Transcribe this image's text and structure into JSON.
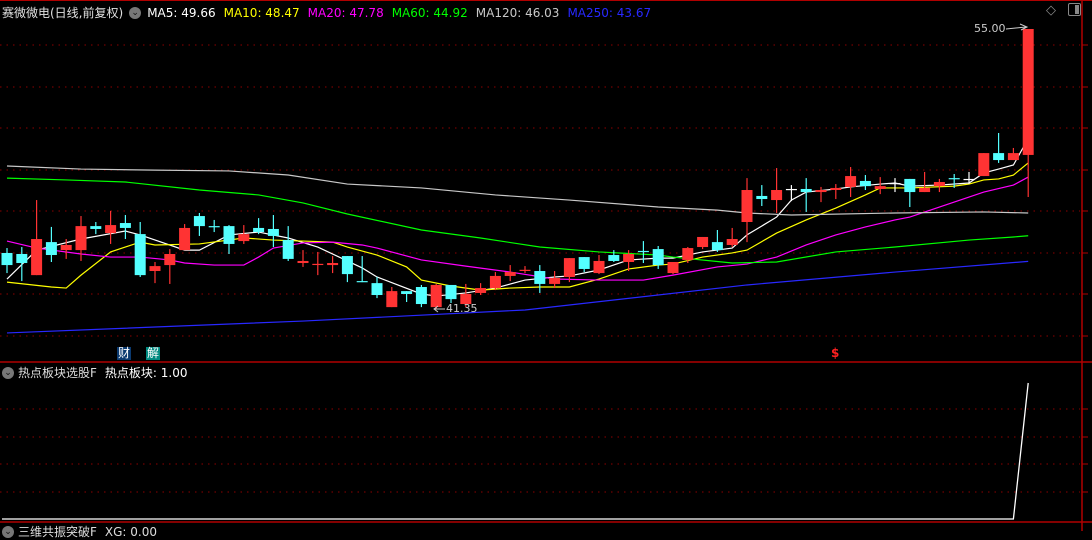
{
  "header": {
    "title": "赛微微电(日线,前复权)",
    "ma": [
      {
        "label": "MA5: 49.66",
        "color": "#ffffff"
      },
      {
        "label": "MA10: 48.47",
        "color": "#ffff00"
      },
      {
        "label": "MA20: 47.78",
        "color": "#ff00ff"
      },
      {
        "label": "MA60: 44.92",
        "color": "#00ff00"
      },
      {
        "label": "MA120: 46.03",
        "color": "#c8c8c8"
      },
      {
        "label": "MA250: 43.67",
        "color": "#2828ff"
      }
    ],
    "icons": [
      "chevron-down-icon",
      "diamond-icon",
      "panel-toggle-icon"
    ]
  },
  "annotations": {
    "high_label": "55.00",
    "low_label": "41.35",
    "finance_marker": "财",
    "unlock_marker": "解",
    "dividend_marker": "$"
  },
  "colors": {
    "up": "#ff3333",
    "down": "#54ffff",
    "doji": "#ffffff",
    "grid": "#8b0000",
    "axis": "#b00000"
  },
  "chart_data": [
    {
      "type": "candlestick",
      "ohlc": [
        [
          44.08,
          44.32,
          43.1,
          43.49
        ],
        [
          44.03,
          44.37,
          42.71,
          43.59
        ],
        [
          43.0,
          46.66,
          43.0,
          44.76
        ],
        [
          44.61,
          45.35,
          43.64,
          43.98
        ],
        [
          44.22,
          44.76,
          43.79,
          44.47
        ],
        [
          44.22,
          45.88,
          43.69,
          45.39
        ],
        [
          45.39,
          45.59,
          45.0,
          45.25
        ],
        [
          45.05,
          46.13,
          44.52,
          45.44
        ],
        [
          45.54,
          45.93,
          44.76,
          45.3
        ],
        [
          45.0,
          45.59,
          42.91,
          43.0
        ],
        [
          43.2,
          43.64,
          42.61,
          43.44
        ],
        [
          43.49,
          44.27,
          42.57,
          44.03
        ],
        [
          44.22,
          45.49,
          44.22,
          45.3
        ],
        [
          45.88,
          46.03,
          44.91,
          45.39
        ],
        [
          45.39,
          45.69,
          45.1,
          45.38
        ],
        [
          45.39,
          45.44,
          44.03,
          44.52
        ],
        [
          44.66,
          45.44,
          44.52,
          45.0
        ],
        [
          45.3,
          45.78,
          45.0,
          45.1
        ],
        [
          45.25,
          45.93,
          44.37,
          44.91
        ],
        [
          44.71,
          45.39,
          43.69,
          43.79
        ],
        [
          43.59,
          44.22,
          43.4,
          43.69
        ],
        [
          43.54,
          44.13,
          43.0,
          43.55
        ],
        [
          43.49,
          43.93,
          43.1,
          43.59
        ],
        [
          43.93,
          43.93,
          42.66,
          43.05
        ],
        [
          42.71,
          43.93,
          42.66,
          42.7
        ],
        [
          42.61,
          42.91,
          41.88,
          42.03
        ],
        [
          41.44,
          42.42,
          41.44,
          42.22
        ],
        [
          42.22,
          42.22,
          41.69,
          42.08
        ],
        [
          42.42,
          42.52,
          41.44,
          41.59
        ],
        [
          41.44,
          42.57,
          41.35,
          42.52
        ],
        [
          42.52,
          42.52,
          41.64,
          41.83
        ],
        [
          41.59,
          42.57,
          41.44,
          42.08
        ],
        [
          42.13,
          42.61,
          42.03,
          42.37
        ],
        [
          42.37,
          43.15,
          42.27,
          42.96
        ],
        [
          42.96,
          43.49,
          42.71,
          43.15
        ],
        [
          43.25,
          43.44,
          43.1,
          43.26
        ],
        [
          43.2,
          43.49,
          42.13,
          42.57
        ],
        [
          42.57,
          43.2,
          42.37,
          42.86
        ],
        [
          42.91,
          43.83,
          42.66,
          43.83
        ],
        [
          43.88,
          43.88,
          43.15,
          43.3
        ],
        [
          43.1,
          43.98,
          43.05,
          43.69
        ],
        [
          43.98,
          44.22,
          43.64,
          43.69
        ],
        [
          43.64,
          44.22,
          43.2,
          44.03
        ],
        [
          44.18,
          44.66,
          43.59,
          44.17
        ],
        [
          44.27,
          44.42,
          43.3,
          43.49
        ],
        [
          43.1,
          43.64,
          43.05,
          43.64
        ],
        [
          43.74,
          44.37,
          43.59,
          44.32
        ],
        [
          44.37,
          44.86,
          44.27,
          44.86
        ],
        [
          44.61,
          45.2,
          44.13,
          44.22
        ],
        [
          44.47,
          45.3,
          44.37,
          44.76
        ],
        [
          45.59,
          47.73,
          44.61,
          47.15
        ],
        [
          46.86,
          47.39,
          46.37,
          46.71
        ],
        [
          46.66,
          48.22,
          46.03,
          47.15
        ],
        [
          47.2,
          47.39,
          46.61,
          47.2
        ],
        [
          47.2,
          47.73,
          46.08,
          47.05
        ],
        [
          47.05,
          47.3,
          46.56,
          47.15
        ],
        [
          47.15,
          47.44,
          46.71,
          47.25
        ],
        [
          47.3,
          48.27,
          46.81,
          47.83
        ],
        [
          47.59,
          47.88,
          47.15,
          47.34
        ],
        [
          47.2,
          47.78,
          46.95,
          47.34
        ],
        [
          47.49,
          47.73,
          47.05,
          47.49
        ],
        [
          47.69,
          47.69,
          46.32,
          47.05
        ],
        [
          47.05,
          48.03,
          47.05,
          47.25
        ],
        [
          47.34,
          47.69,
          47.05,
          47.54
        ],
        [
          47.73,
          47.93,
          47.25,
          47.72
        ],
        [
          47.69,
          48.03,
          47.44,
          47.69
        ],
        [
          47.83,
          48.95,
          47.83,
          48.95
        ],
        [
          48.95,
          49.93,
          48.47,
          48.61
        ],
        [
          48.61,
          49.2,
          48.61,
          48.95
        ],
        [
          48.86,
          55.0,
          46.81,
          55.0
        ]
      ],
      "ma_series": [
        {
          "name": "MA5",
          "color": "#ffffff",
          "points": [
            [
              0,
              42.81
            ],
            [
              2,
              44.22
            ],
            [
              5,
              44.76
            ],
            [
              8,
              45.15
            ],
            [
              9,
              44.96
            ],
            [
              12,
              44.22
            ],
            [
              13,
              44.22
            ],
            [
              15,
              44.96
            ],
            [
              17,
              45.1
            ],
            [
              19,
              44.81
            ],
            [
              21,
              44.37
            ],
            [
              24,
              43.35
            ],
            [
              25,
              42.91
            ],
            [
              28,
              42.08
            ],
            [
              29,
              41.98
            ],
            [
              31,
              42.13
            ],
            [
              33,
              42.37
            ],
            [
              35,
              42.76
            ],
            [
              37,
              42.91
            ],
            [
              38,
              42.96
            ],
            [
              40,
              43.25
            ],
            [
              42,
              43.74
            ],
            [
              44,
              43.83
            ],
            [
              45,
              43.83
            ],
            [
              47,
              44.13
            ],
            [
              49,
              44.32
            ],
            [
              50,
              44.96
            ],
            [
              52,
              45.83
            ],
            [
              53,
              46.66
            ],
            [
              54,
              47.05
            ],
            [
              56,
              47.2
            ],
            [
              57,
              47.3
            ],
            [
              59,
              47.44
            ],
            [
              60,
              47.49
            ],
            [
              61,
              47.34
            ],
            [
              63,
              47.39
            ],
            [
              65,
              47.49
            ],
            [
              66,
              47.98
            ],
            [
              67,
              48.17
            ],
            [
              68,
              48.37
            ],
            [
              69,
              49.66
            ]
          ]
        },
        {
          "name": "MA10",
          "color": "#ffff00",
          "points": [
            [
              0,
              42.66
            ],
            [
              3,
              42.42
            ],
            [
              4,
              42.37
            ],
            [
              5,
              43.0
            ],
            [
              7,
              44.13
            ],
            [
              9,
              44.61
            ],
            [
              10,
              44.47
            ],
            [
              13,
              44.52
            ],
            [
              16,
              44.81
            ],
            [
              18,
              44.71
            ],
            [
              20,
              44.66
            ],
            [
              22,
              44.61
            ],
            [
              23,
              44.37
            ],
            [
              25,
              43.98
            ],
            [
              27,
              43.4
            ],
            [
              28,
              42.76
            ],
            [
              30,
              42.47
            ],
            [
              32,
              42.27
            ],
            [
              34,
              42.37
            ],
            [
              36,
              42.42
            ],
            [
              38,
              42.42
            ],
            [
              40,
              42.81
            ],
            [
              42,
              43.3
            ],
            [
              44,
              43.49
            ],
            [
              45,
              43.54
            ],
            [
              47,
              43.88
            ],
            [
              49,
              44.08
            ],
            [
              50,
              44.22
            ],
            [
              52,
              45.05
            ],
            [
              54,
              45.69
            ],
            [
              56,
              46.27
            ],
            [
              58,
              46.91
            ],
            [
              59,
              47.25
            ],
            [
              61,
              47.25
            ],
            [
              64,
              47.34
            ],
            [
              65,
              47.44
            ],
            [
              66,
              47.64
            ],
            [
              67,
              47.69
            ],
            [
              68,
              47.88
            ],
            [
              69,
              48.47
            ]
          ]
        },
        {
          "name": "MA20",
          "color": "#ff00ff",
          "points": [
            [
              0,
              44.66
            ],
            [
              2,
              44.32
            ],
            [
              5,
              44.03
            ],
            [
              7,
              43.88
            ],
            [
              9,
              43.88
            ],
            [
              11,
              43.74
            ],
            [
              12,
              43.59
            ],
            [
              14,
              43.49
            ],
            [
              16,
              43.49
            ],
            [
              17,
              43.88
            ],
            [
              18,
              44.32
            ],
            [
              20,
              44.57
            ],
            [
              22,
              44.61
            ],
            [
              24,
              44.47
            ],
            [
              25,
              44.32
            ],
            [
              28,
              43.74
            ],
            [
              31,
              43.44
            ],
            [
              34,
              43.15
            ],
            [
              37,
              42.81
            ],
            [
              40,
              42.76
            ],
            [
              43,
              42.76
            ],
            [
              45,
              43.0
            ],
            [
              48,
              43.4
            ],
            [
              50,
              43.54
            ],
            [
              52,
              43.88
            ],
            [
              54,
              44.47
            ],
            [
              56,
              44.96
            ],
            [
              58,
              45.35
            ],
            [
              60,
              45.69
            ],
            [
              61,
              45.83
            ],
            [
              64,
              46.56
            ],
            [
              66,
              47.05
            ],
            [
              68,
              47.39
            ],
            [
              69,
              47.78
            ]
          ]
        },
        {
          "name": "MA60",
          "color": "#00ff00",
          "points": [
            [
              0,
              47.73
            ],
            [
              4,
              47.64
            ],
            [
              8,
              47.54
            ],
            [
              13,
              47.15
            ],
            [
              17,
              46.91
            ],
            [
              20,
              46.52
            ],
            [
              23,
              45.98
            ],
            [
              28,
              45.2
            ],
            [
              32,
              44.81
            ],
            [
              36,
              44.37
            ],
            [
              40,
              44.13
            ],
            [
              44,
              43.98
            ],
            [
              45,
              43.88
            ],
            [
              49,
              43.59
            ],
            [
              52,
              43.64
            ],
            [
              56,
              44.13
            ],
            [
              60,
              44.37
            ],
            [
              65,
              44.71
            ],
            [
              68,
              44.86
            ],
            [
              69,
              44.92
            ]
          ]
        },
        {
          "name": "MA120",
          "color": "#c8c8c8",
          "points": [
            [
              0,
              48.32
            ],
            [
              5,
              48.17
            ],
            [
              10,
              48.12
            ],
            [
              15,
              48.08
            ],
            [
              19,
              47.88
            ],
            [
              23,
              47.44
            ],
            [
              28,
              47.25
            ],
            [
              33,
              46.91
            ],
            [
              38,
              46.66
            ],
            [
              44,
              46.32
            ],
            [
              48,
              46.17
            ],
            [
              50,
              46.03
            ],
            [
              53,
              45.93
            ],
            [
              60,
              46.03
            ],
            [
              66,
              46.08
            ],
            [
              69,
              46.03
            ]
          ]
        },
        {
          "name": "MA250",
          "color": "#2828ff",
          "points": [
            [
              0,
              40.18
            ],
            [
              20,
              40.76
            ],
            [
              35,
              41.3
            ],
            [
              50,
              42.52
            ],
            [
              60,
              43.15
            ],
            [
              69,
              43.67
            ]
          ]
        }
      ],
      "high": {
        "index": 69,
        "value": 55.0
      },
      "low": {
        "index": 29,
        "value": 41.35
      }
    },
    {
      "type": "line",
      "name": "热点板块",
      "values": [
        0,
        0,
        0,
        0,
        0,
        0,
        0,
        0,
        0,
        0,
        0,
        0,
        0,
        0,
        0,
        0,
        0,
        0,
        0,
        0,
        0,
        0,
        0,
        0,
        0,
        0,
        0,
        0,
        0,
        0,
        0,
        0,
        0,
        0,
        0,
        0,
        0,
        0,
        0,
        0,
        0,
        0,
        0,
        0,
        0,
        0,
        0,
        0,
        0,
        0,
        0,
        0,
        0,
        0,
        0,
        0,
        0,
        0,
        0,
        0,
        0,
        0,
        0,
        0,
        0,
        0,
        0,
        0,
        0,
        1
      ],
      "ylim": [
        0,
        1
      ]
    }
  ],
  "pane2": {
    "indicator": "热点板块选股F",
    "value_label": "热点板块: 1.00"
  },
  "pane3": {
    "indicator": "三维共振突破F",
    "value_label": "XG: 0.00"
  }
}
